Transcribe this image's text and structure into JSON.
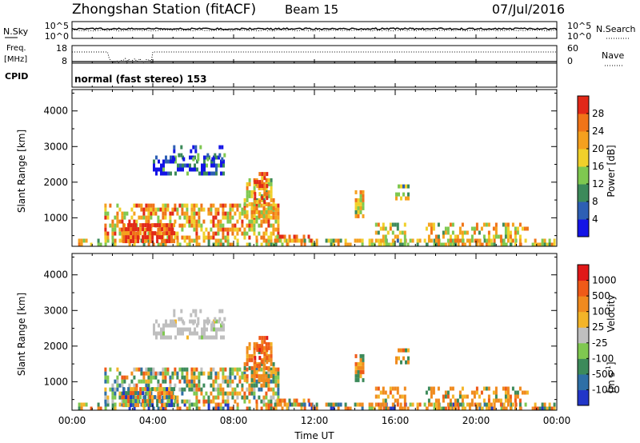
{
  "header": {
    "station": "Zhongshan Station (fitACF)",
    "beam": "Beam 15",
    "date": "07/Jul/2016"
  },
  "strip_sky": {
    "label": "N.Sky",
    "left_ticks": [
      "10^5",
      "10^0"
    ],
    "right_ticks": [
      "10^5",
      "10^0"
    ],
    "right_label": "N.Search"
  },
  "strip_freq": {
    "label_line1": "Freq.",
    "label_line2": "[MHz]",
    "left_ticks": [
      "18",
      "8"
    ],
    "right_ticks": [
      "60",
      "0"
    ],
    "right_label": "Nave"
  },
  "strip_cpid": {
    "label": "CPID",
    "mode": "normal (fast stereo) 153"
  },
  "chart_data": [
    {
      "type": "heatmap",
      "ylabel": "Slant Range [km]",
      "ylim": [
        200,
        4600
      ],
      "y_ticks": [
        "1000",
        "2000",
        "3000",
        "4000"
      ],
      "y_tick_values": [
        1000,
        2000,
        3000,
        4000
      ],
      "xlim": [
        0,
        24
      ],
      "colorbar_label": "Power [dB]",
      "colorbar_ticks": [
        "4",
        "8",
        "12",
        "16",
        "20",
        "24",
        "28"
      ],
      "colorbar_colors": [
        "#1414e6",
        "#2d5fb4",
        "#3c8a5a",
        "#7fc850",
        "#f0d02a",
        "#f5a01e",
        "#f07418",
        "#e22818"
      ],
      "colorbar_range": [
        0,
        32
      ]
    },
    {
      "type": "heatmap",
      "ylabel": "Slant Range [km]",
      "ylim": [
        200,
        4600
      ],
      "y_ticks": [
        "1000",
        "2000",
        "3000",
        "4000"
      ],
      "y_tick_values": [
        1000,
        2000,
        3000,
        4000
      ],
      "xlim": [
        0,
        24
      ],
      "xlabel": "Time UT",
      "x_ticks": [
        "00:00",
        "04:00",
        "08:00",
        "12:00",
        "16:00",
        "20:00",
        "00:00"
      ],
      "x_tick_values": [
        0,
        4,
        8,
        12,
        16,
        20,
        24
      ],
      "colorbar_label": "Velocity",
      "colorbar_unit": "[m s",
      "colorbar_unit_exp": "-1",
      "colorbar_ticks": [
        "1000",
        "500",
        "100",
        "25",
        "-25",
        "-100",
        "-500",
        "-1000"
      ],
      "colorbar_colors": [
        "#2236c8",
        "#2e6fa6",
        "#3c8a5a",
        "#7fc850",
        "#bfbfbf",
        "#f3b428",
        "#f08a1e",
        "#ef5a18",
        "#e01818"
      ]
    }
  ]
}
